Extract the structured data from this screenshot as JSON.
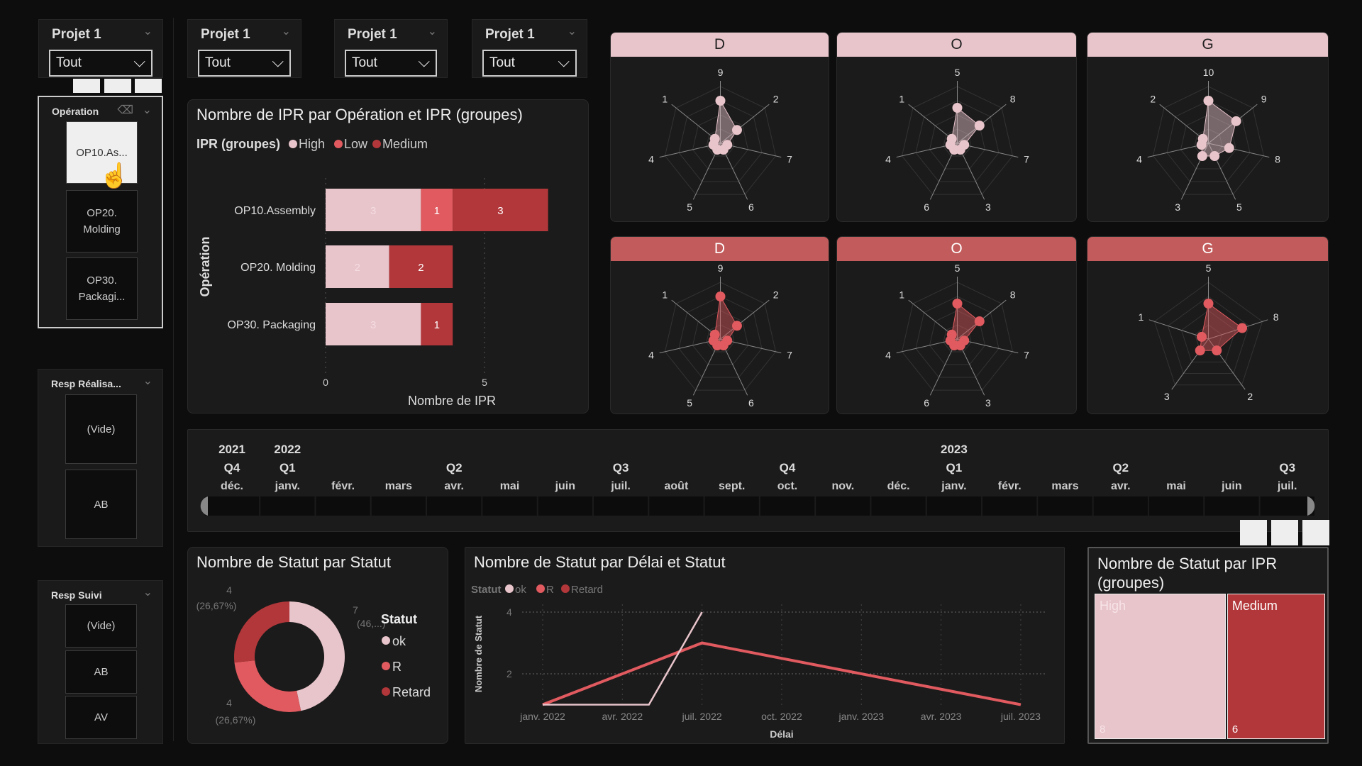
{
  "colors": {
    "high": "#e8c4cb",
    "low": "#e05a5f",
    "medium": "#b2373a",
    "ok": "#e8c4cb",
    "r": "#e05a5f",
    "retard": "#b2373a",
    "radar_top_header": "#e8c4cb",
    "radar_bottom_header": "#c25b5b"
  },
  "project_slicers": [
    {
      "label": "Projet 1",
      "value": "Tout"
    },
    {
      "label": "Projet 1",
      "value": "Tout"
    },
    {
      "label": "Projet 1",
      "value": "Tout"
    },
    {
      "label": "Projet 1",
      "value": "Tout"
    }
  ],
  "operation_slicer": {
    "label": "Opération",
    "items": [
      "OP10.As...",
      "OP20. Molding",
      "OP30. Packagi..."
    ],
    "selected": 0
  },
  "resp_realisation": {
    "label": "Resp Réalisa...",
    "items": [
      "(Vide)",
      "AB"
    ]
  },
  "resp_suivi": {
    "label": "Resp Suivi",
    "items": [
      "(Vide)",
      "AB",
      "AV"
    ]
  },
  "bar_chart": {
    "title": "Nombre de IPR par Opération et IPR (groupes)",
    "chart_data": {
      "type": "bar",
      "orientation": "horizontal",
      "stacked": true,
      "xlabel": "Nombre de IPR",
      "ylabel": "Opération",
      "legend_title": "IPR (groupes)",
      "xticks": [
        0,
        5
      ],
      "categories": [
        "OP10.Assembly",
        "OP20. Molding",
        "OP30. Packaging"
      ],
      "series": [
        {
          "name": "High",
          "values": [
            3,
            2,
            3
          ]
        },
        {
          "name": "Low",
          "values": [
            1,
            0,
            0
          ]
        },
        {
          "name": "Medium",
          "values": [
            3,
            2,
            1
          ]
        }
      ]
    }
  },
  "radars": [
    {
      "title": "D",
      "row": "top",
      "axes": [
        "9",
        "2",
        "7",
        "6",
        "5",
        "4",
        "1"
      ],
      "values": [
        6,
        3,
        1,
        1,
        1,
        1,
        1
      ]
    },
    {
      "title": "O",
      "row": "top",
      "axes": [
        "5",
        "8",
        "7",
        "3",
        "6",
        "4",
        "1"
      ],
      "values": [
        5,
        4,
        1,
        1,
        1,
        1,
        1
      ]
    },
    {
      "title": "G",
      "row": "top",
      "axes": [
        "10",
        "9",
        "8",
        "5",
        "3",
        "4",
        "2"
      ],
      "values": [
        6,
        5,
        3,
        2,
        2,
        1,
        1
      ]
    },
    {
      "title": "D",
      "row": "bottom",
      "axes": [
        "9",
        "2",
        "7",
        "6",
        "5",
        "4",
        "1"
      ],
      "values": [
        6,
        3,
        1,
        1,
        1,
        1,
        1
      ]
    },
    {
      "title": "O",
      "row": "bottom",
      "axes": [
        "5",
        "8",
        "7",
        "3",
        "6",
        "4",
        "1"
      ],
      "values": [
        5,
        4,
        1,
        1,
        1,
        1,
        1
      ]
    },
    {
      "title": "G",
      "row": "bottom",
      "axes": [
        "5",
        "8",
        "2",
        "3",
        "1"
      ],
      "values": [
        5,
        5,
        2,
        2,
        1
      ]
    }
  ],
  "timeline": {
    "years": [
      {
        "i": 0,
        "t": "2021"
      },
      {
        "i": 1,
        "t": "2022"
      },
      {
        "i": 13,
        "t": "2023"
      }
    ],
    "quarters": [
      {
        "i": 0,
        "t": "Q4"
      },
      {
        "i": 1,
        "t": "Q1"
      },
      {
        "i": 4,
        "t": "Q2"
      },
      {
        "i": 7,
        "t": "Q3"
      },
      {
        "i": 10,
        "t": "Q4"
      },
      {
        "i": 13,
        "t": "Q1"
      },
      {
        "i": 16,
        "t": "Q2"
      },
      {
        "i": 19,
        "t": "Q3"
      }
    ],
    "months": [
      "déc.",
      "janv.",
      "févr.",
      "mars",
      "avr.",
      "mai",
      "juin",
      "juil.",
      "août",
      "sept.",
      "oct.",
      "nov.",
      "déc.",
      "janv.",
      "févr.",
      "mars",
      "avr.",
      "mai",
      "juin",
      "juil."
    ]
  },
  "donut": {
    "title": "Nombre de Statut par Statut",
    "legend_title": "Statut",
    "chart_data": {
      "type": "pie",
      "hole": true,
      "slices": [
        {
          "name": "ok",
          "value": 7,
          "label": "7",
          "pct": "(46,...)"
        },
        {
          "name": "R",
          "value": 4,
          "label": "4",
          "pct": "(26,67%)"
        },
        {
          "name": "Retard",
          "value": 4,
          "label": "4",
          "pct": "(26,67%)"
        }
      ]
    }
  },
  "line_chart": {
    "title": "Nombre de Statut par Délai et Statut",
    "legend_title": "Statut",
    "chart_data": {
      "type": "line",
      "xlabel": "Délai",
      "ylabel": "Nombre de Statut",
      "yticks": [
        2,
        4
      ],
      "xticks": [
        "janv. 2022",
        "avr. 2022",
        "juil. 2022",
        "oct. 2022",
        "janv. 2023",
        "avr. 2023",
        "juil. 2023"
      ],
      "series": [
        {
          "name": "ok",
          "points": [
            [
              "2022-01",
              1
            ],
            [
              "2022-05",
              1
            ],
            [
              "2022-07",
              4
            ]
          ]
        },
        {
          "name": "R",
          "points": [
            [
              "2022-01",
              1
            ],
            [
              "2022-07",
              3
            ],
            [
              "2023-07",
              1
            ]
          ]
        },
        {
          "name": "Retard",
          "points": []
        }
      ]
    }
  },
  "treemap": {
    "title": "Nombre de Statut par IPR (groupes)",
    "chart_data": {
      "type": "treemap",
      "items": [
        {
          "name": "High",
          "value": 8
        },
        {
          "name": "Medium",
          "value": 6
        }
      ]
    }
  }
}
